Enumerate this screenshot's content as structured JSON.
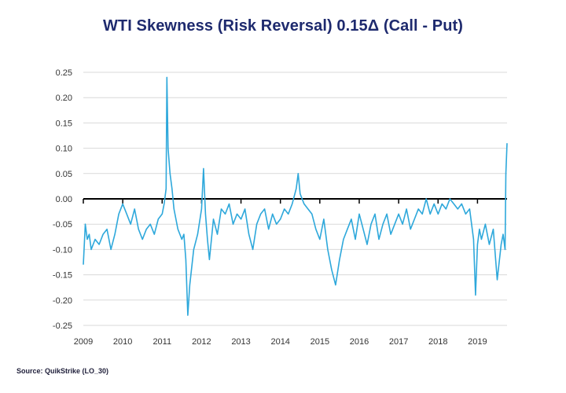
{
  "chart_data": {
    "type": "line",
    "title": "WTI Skewness (Risk Reversal) 0.15Δ (Call - Put)",
    "xlabel": "",
    "ylabel": "",
    "xlim": [
      2009,
      2019.75
    ],
    "ylim": [
      -0.25,
      0.25
    ],
    "yticks": [
      "0.25",
      "0.20",
      "0.15",
      "0.10",
      "0.05",
      "0.00",
      "-0.05",
      "-0.10",
      "-0.15",
      "-0.20",
      "-0.25"
    ],
    "ytick_values": [
      0.25,
      0.2,
      0.15,
      0.1,
      0.05,
      0.0,
      -0.05,
      -0.1,
      -0.15,
      -0.2,
      -0.25
    ],
    "xticks": [
      "2009",
      "2010",
      "2011",
      "2012",
      "2013",
      "2014",
      "2015",
      "2016",
      "2017",
      "2018",
      "2019"
    ],
    "xtick_values": [
      2009,
      2010,
      2011,
      2012,
      2013,
      2014,
      2015,
      2016,
      2017,
      2018,
      2019
    ],
    "grid": "horizontal",
    "zero_line": true,
    "series": [
      {
        "color": "#2ea8db",
        "x": [
          2009.0,
          2009.05,
          2009.1,
          2009.15,
          2009.2,
          2009.3,
          2009.4,
          2009.5,
          2009.6,
          2009.7,
          2009.8,
          2009.9,
          2010.0,
          2010.1,
          2010.2,
          2010.3,
          2010.4,
          2010.5,
          2010.6,
          2010.7,
          2010.8,
          2010.9,
          2011.0,
          2011.05,
          2011.1,
          2011.12,
          2011.15,
          2011.2,
          2011.25,
          2011.3,
          2011.4,
          2011.5,
          2011.55,
          2011.6,
          2011.65,
          2011.7,
          2011.8,
          2011.9,
          2012.0,
          2012.05,
          2012.1,
          2012.15,
          2012.2,
          2012.3,
          2012.4,
          2012.5,
          2012.6,
          2012.7,
          2012.8,
          2012.9,
          2013.0,
          2013.1,
          2013.2,
          2013.3,
          2013.4,
          2013.5,
          2013.6,
          2013.7,
          2013.8,
          2013.9,
          2014.0,
          2014.1,
          2014.2,
          2014.3,
          2014.4,
          2014.45,
          2014.5,
          2014.6,
          2014.7,
          2014.8,
          2014.9,
          2015.0,
          2015.1,
          2015.2,
          2015.3,
          2015.4,
          2015.5,
          2015.6,
          2015.7,
          2015.8,
          2015.9,
          2016.0,
          2016.1,
          2016.2,
          2016.3,
          2016.4,
          2016.5,
          2016.6,
          2016.7,
          2016.8,
          2016.9,
          2017.0,
          2017.1,
          2017.2,
          2017.3,
          2017.4,
          2017.5,
          2017.6,
          2017.7,
          2017.8,
          2017.9,
          2018.0,
          2018.1,
          2018.2,
          2018.3,
          2018.4,
          2018.5,
          2018.6,
          2018.7,
          2018.8,
          2018.9,
          2018.95,
          2019.0,
          2019.05,
          2019.1,
          2019.2,
          2019.3,
          2019.4,
          2019.5,
          2019.6,
          2019.65,
          2019.7,
          2019.72,
          2019.75
        ],
        "y": [
          -0.13,
          -0.05,
          -0.08,
          -0.07,
          -0.1,
          -0.08,
          -0.09,
          -0.07,
          -0.06,
          -0.1,
          -0.07,
          -0.03,
          -0.01,
          -0.03,
          -0.05,
          -0.02,
          -0.06,
          -0.08,
          -0.06,
          -0.05,
          -0.07,
          -0.04,
          -0.03,
          -0.01,
          0.02,
          0.24,
          0.1,
          0.05,
          0.02,
          -0.02,
          -0.06,
          -0.08,
          -0.07,
          -0.12,
          -0.23,
          -0.17,
          -0.1,
          -0.07,
          -0.02,
          0.06,
          -0.03,
          -0.08,
          -0.12,
          -0.04,
          -0.07,
          -0.02,
          -0.03,
          -0.01,
          -0.05,
          -0.03,
          -0.04,
          -0.02,
          -0.07,
          -0.1,
          -0.05,
          -0.03,
          -0.02,
          -0.06,
          -0.03,
          -0.05,
          -0.04,
          -0.02,
          -0.03,
          -0.01,
          0.02,
          0.05,
          0.01,
          -0.01,
          -0.02,
          -0.03,
          -0.06,
          -0.08,
          -0.04,
          -0.1,
          -0.14,
          -0.17,
          -0.12,
          -0.08,
          -0.06,
          -0.04,
          -0.08,
          -0.03,
          -0.06,
          -0.09,
          -0.05,
          -0.03,
          -0.08,
          -0.05,
          -0.03,
          -0.07,
          -0.05,
          -0.03,
          -0.05,
          -0.02,
          -0.06,
          -0.04,
          -0.02,
          -0.03,
          0.0,
          -0.03,
          -0.01,
          -0.03,
          -0.01,
          -0.02,
          0.0,
          -0.01,
          -0.02,
          -0.01,
          -0.03,
          -0.02,
          -0.08,
          -0.19,
          -0.09,
          -0.06,
          -0.08,
          -0.05,
          -0.09,
          -0.06,
          -0.16,
          -0.09,
          -0.07,
          -0.1,
          0.05,
          0.11
        ]
      }
    ]
  },
  "source_text": "Source: QuikStrike (LO_30)"
}
